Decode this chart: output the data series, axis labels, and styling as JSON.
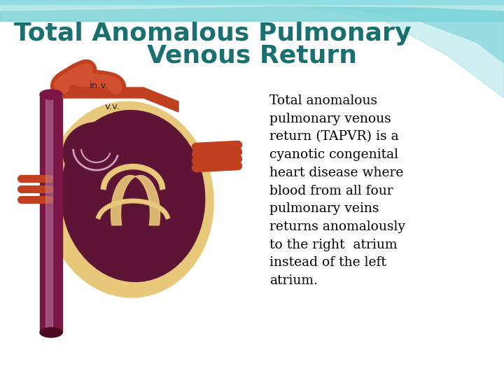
{
  "title_line1": "Total Anomalous Pulmonary",
  "title_line2": "Venous Return",
  "title_color": "#1a7070",
  "title_fontsize": 26,
  "title2_fontsize": 26,
  "body_text": "Total anomalous\npulmonary venous\nreturn (TAPVR) is a\ncyanotic congenital\nheart disease where\nblood from all four\npulmonary veins\nreturns anomalously\nto the right  atrium\ninstead of the left\natrium.",
  "body_fontsize": 13.5,
  "body_color": "#000000",
  "bg_color": "#ffffff",
  "wave_teal1": "#7dd4d8",
  "wave_teal2": "#a8e2e6",
  "wave_teal3": "#c8eeef",
  "label_inv": "in.v.",
  "label_vv": "v.v.",
  "heart_outer_color": "#e8c87a",
  "heart_inner_color": "#5e1535",
  "vessel_dark": "#7a1545",
  "vessel_light_stripe": "#c090b0",
  "vessel_red": "#c04020"
}
